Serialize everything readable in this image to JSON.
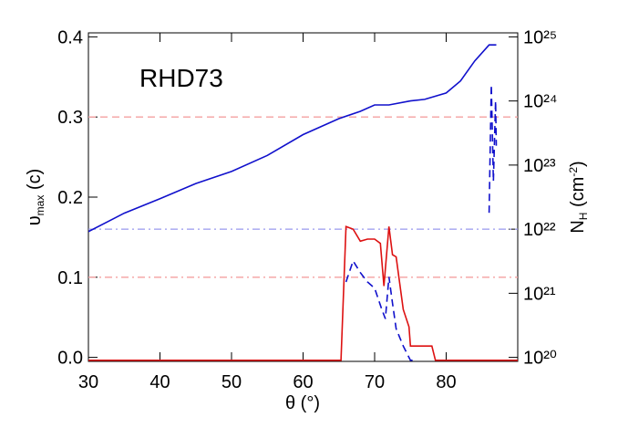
{
  "chart_data": {
    "type": "line",
    "annotation": "RHD73",
    "annotation_color": "#ee4411",
    "xlabel": "θ (°)",
    "ylabel": {
      "main": "υ",
      "sub": "max",
      "tail": " (c)"
    },
    "y2label": {
      "main": "N",
      "sub": "H",
      "tail": " (cm",
      "sup": "-2",
      "end": ")"
    },
    "xlim": [
      30,
      90
    ],
    "xticks": [
      30,
      40,
      50,
      60,
      70,
      80
    ],
    "ylim": [
      -0.005,
      0.405
    ],
    "yticks": [
      {
        "value": 0,
        "label": "0.0"
      },
      0.1,
      0.2,
      0.3,
      0.4
    ],
    "y2log": true,
    "y2lim": [
      8.66e+19,
      1.155e+25
    ],
    "y2ticks": [
      {
        "value": 1e+20,
        "label": "10²⁰"
      },
      {
        "value": 1e+21,
        "label": "10²¹"
      },
      {
        "value": 1e+22,
        "label": "10²²"
      },
      {
        "value": 1e+23,
        "label": "10²³"
      },
      {
        "value": 1e+24,
        "label": "10²⁴"
      },
      {
        "value": 1e+25,
        "label": "10²⁵"
      }
    ],
    "hlines": [
      {
        "value": 0.3,
        "color": "#f4a0a0",
        "style": "dashed"
      },
      {
        "value": 0.16,
        "color": "#9999ee",
        "style": "dashdot"
      },
      {
        "value": 0.1,
        "color": "#f4a0a0",
        "style": "dashdot"
      }
    ],
    "series": [
      {
        "color": "#1010cc",
        "style": "solid",
        "x": [
          30,
          35,
          40,
          45,
          50,
          55,
          60,
          65,
          68,
          70,
          72,
          75,
          77,
          80,
          82,
          84,
          86,
          87
        ],
        "values": [
          0.157,
          0.18,
          0.198,
          0.217,
          0.232,
          0.252,
          0.278,
          0.298,
          0.307,
          0.315,
          0.315,
          0.32,
          0.322,
          0.33,
          0.345,
          0.37,
          0.39,
          0.39
        ]
      },
      {
        "color": "#dd1111",
        "style": "solid",
        "axis": "y2",
        "x": [
          30,
          65.3,
          66,
          67,
          68,
          69,
          70,
          70.8,
          71.3,
          72,
          72.5,
          73,
          74,
          74.8,
          75,
          78,
          78.5,
          90
        ],
        "values": [
          9e+19,
          9e+19,
          1.1e+22,
          1e+22,
          6.5e+21,
          7e+21,
          7e+21,
          6e+21,
          1.3e+21,
          1.1e+22,
          4e+21,
          3.7e+21,
          5.6e+20,
          3e+20,
          1.5e+20,
          1.5e+20,
          9e+19,
          9e+19
        ]
      },
      {
        "color": "#1010cc",
        "style": "dashed",
        "axis": "y2",
        "x": [
          66,
          67,
          68,
          69,
          70,
          71,
          71.5,
          72,
          72.5,
          73,
          74,
          75,
          75.5,
          80,
          86,
          86.3,
          86.6,
          86.9,
          87
        ],
        "values": [
          1.5e+21,
          3.2e+21,
          2.1e+21,
          1.5e+21,
          1.2e+21,
          5.6e+20,
          4e+20,
          1.8e+21,
          7e+20,
          2.8e+20,
          1.5e+20,
          9e+19,
          9e+19,
          null,
          1.8e+22,
          1.8e+24,
          5.6e+22,
          1e+24,
          2e+23
        ]
      }
    ]
  }
}
